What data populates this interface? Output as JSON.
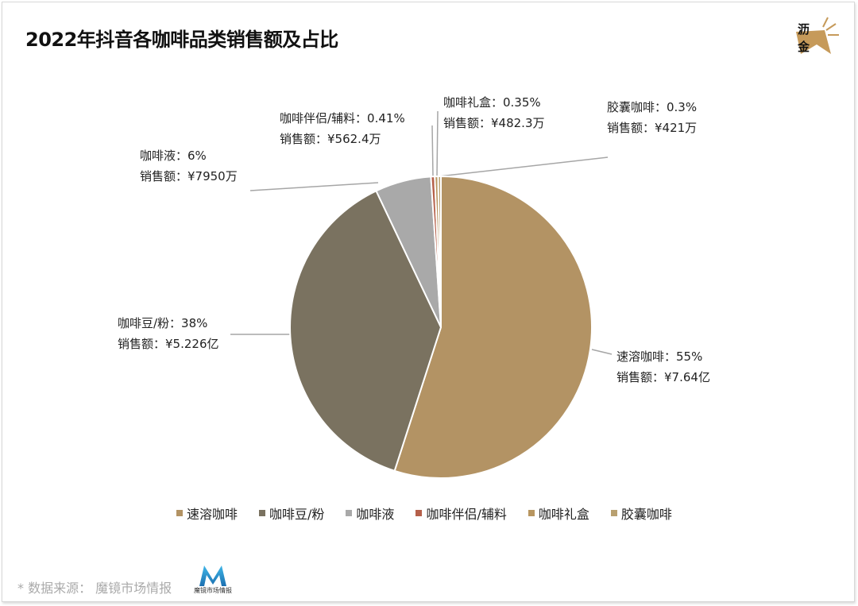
{
  "title": "2022年抖音各咖啡品类销售额及占比",
  "logo_text": "沥金",
  "source": "* 数据来源： 魔镜市场情报",
  "source_logo_text": "魔镜市场情报",
  "chart_data": {
    "type": "pie",
    "title": "2022年抖音各咖啡品类销售额及占比",
    "start": "top",
    "direction": "clockwise",
    "legend_position": "bottom",
    "slices": [
      {
        "name": "速溶咖啡",
        "percent": 55,
        "pct_label": "速溶咖啡：55%",
        "sales_label": "销售额：¥7.64亿",
        "color": "#B39364"
      },
      {
        "name": "咖啡豆/粉",
        "percent": 38,
        "pct_label": "咖啡豆/粉：38%",
        "sales_label": "销售额：¥5.226亿",
        "color": "#7A7260"
      },
      {
        "name": "咖啡液",
        "percent": 6,
        "pct_label": "咖啡液：6%",
        "sales_label": "销售额：¥7950万",
        "color": "#A9A9A9"
      },
      {
        "name": "咖啡伴侣/辅料",
        "percent": 0.41,
        "pct_label": "咖啡伴侣/辅料：0.41%",
        "sales_label": "销售额：¥562.4万",
        "color": "#B5604A"
      },
      {
        "name": "咖啡礼盒",
        "percent": 0.35,
        "pct_label": "咖啡礼盒：0.35%",
        "sales_label": "销售额：¥482.3万",
        "color": "#B89660"
      },
      {
        "name": "胶囊咖啡",
        "percent": 0.3,
        "pct_label": "胶囊咖啡：0.3%",
        "sales_label": "销售额：¥421万",
        "color": "#B8A070"
      }
    ]
  }
}
